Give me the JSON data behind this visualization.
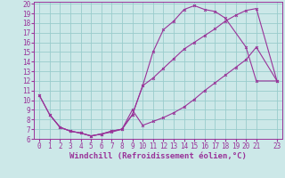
{
  "xlabel": "Windchill (Refroidissement éolien,°C)",
  "bg_color": "#cce8e8",
  "line_color": "#993399",
  "grid_color": "#99cccc",
  "xlim": [
    -0.5,
    23.5
  ],
  "ylim": [
    6,
    20.2
  ],
  "xticks": [
    0,
    1,
    2,
    3,
    4,
    5,
    6,
    7,
    8,
    9,
    10,
    11,
    12,
    13,
    14,
    15,
    16,
    17,
    18,
    19,
    20,
    21,
    23
  ],
  "yticks": [
    6,
    7,
    8,
    9,
    10,
    11,
    12,
    13,
    14,
    15,
    16,
    17,
    18,
    19,
    20
  ],
  "line1_x": [
    0,
    1,
    2,
    3,
    4,
    5,
    6,
    7,
    8,
    9,
    10,
    11,
    12,
    13,
    14,
    15,
    16,
    17,
    18,
    20,
    21,
    23
  ],
  "line1_y": [
    10.5,
    8.5,
    7.2,
    6.8,
    6.6,
    6.3,
    6.5,
    6.8,
    7.0,
    8.5,
    11.5,
    15.0,
    17.3,
    18.2,
    19.4,
    19.8,
    19.4,
    19.2,
    18.5,
    15.5,
    12.0,
    12.0
  ],
  "line2_x": [
    0,
    1,
    2,
    3,
    4,
    5,
    6,
    7,
    8,
    9,
    10,
    11,
    12,
    13,
    14,
    15,
    16,
    17,
    18,
    19,
    20,
    21,
    23
  ],
  "line2_y": [
    10.5,
    8.5,
    7.2,
    6.8,
    6.6,
    6.3,
    6.5,
    6.8,
    7.0,
    8.5,
    11.5,
    12.3,
    13.3,
    14.3,
    15.3,
    16.0,
    16.7,
    17.4,
    18.2,
    18.8,
    19.3,
    19.5,
    12.0
  ],
  "line3_x": [
    1,
    2,
    3,
    4,
    5,
    6,
    7,
    8,
    9,
    10,
    11,
    12,
    13,
    14,
    15,
    16,
    17,
    18,
    19,
    20,
    21,
    23
  ],
  "line3_y": [
    8.5,
    7.2,
    6.8,
    6.6,
    6.3,
    6.5,
    6.7,
    7.0,
    9.0,
    7.4,
    7.8,
    8.2,
    8.7,
    9.3,
    10.1,
    11.0,
    11.8,
    12.6,
    13.4,
    14.2,
    15.5,
    12.0
  ],
  "xlabel_fontsize": 6.5,
  "tick_fontsize": 5.5
}
